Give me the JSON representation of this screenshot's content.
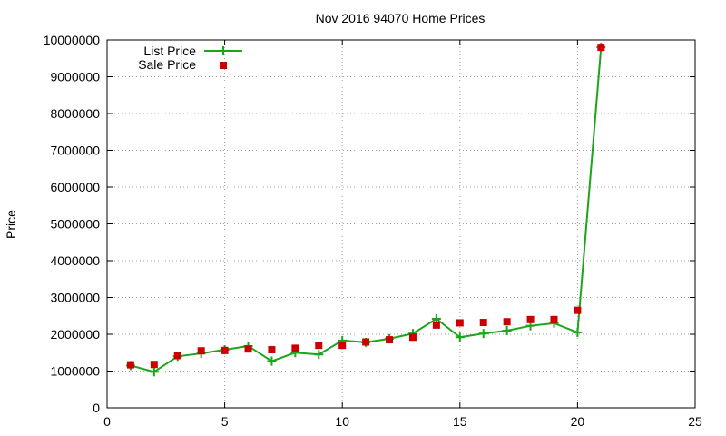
{
  "chart_data": {
    "type": "line",
    "title": "Nov 2016 94070 Home Prices",
    "xlabel": "",
    "ylabel": "Price",
    "xlim": [
      0,
      25
    ],
    "ylim": [
      0,
      10000000
    ],
    "x_ticks": [
      0,
      5,
      10,
      15,
      20,
      25
    ],
    "y_ticks": [
      0,
      1000000,
      2000000,
      3000000,
      4000000,
      5000000,
      6000000,
      7000000,
      8000000,
      9000000,
      10000000
    ],
    "grid": true,
    "legend_position": "top-left",
    "series": [
      {
        "name": "List Price",
        "style": "line+cross",
        "color": "#1aa51a",
        "x": [
          1,
          2,
          3,
          4,
          5,
          6,
          7,
          8,
          9,
          10,
          11,
          12,
          13,
          14,
          15,
          16,
          17,
          18,
          19,
          20,
          21
        ],
        "values": [
          1150000,
          980000,
          1400000,
          1480000,
          1580000,
          1680000,
          1270000,
          1500000,
          1450000,
          1830000,
          1780000,
          1880000,
          2020000,
          2420000,
          1920000,
          2020000,
          2100000,
          2230000,
          2300000,
          2050000,
          9800000
        ]
      },
      {
        "name": "Sale Price",
        "style": "square-markers",
        "color": "#cc0000",
        "x": [
          1,
          2,
          3,
          4,
          5,
          6,
          7,
          8,
          9,
          10,
          11,
          12,
          13,
          14,
          15,
          16,
          17,
          18,
          19,
          20,
          21
        ],
        "values": [
          1170000,
          1180000,
          1420000,
          1550000,
          1560000,
          1600000,
          1580000,
          1620000,
          1700000,
          1700000,
          1790000,
          1850000,
          1920000,
          2250000,
          2310000,
          2320000,
          2340000,
          2400000,
          2400000,
          2650000,
          9800000
        ]
      }
    ]
  }
}
